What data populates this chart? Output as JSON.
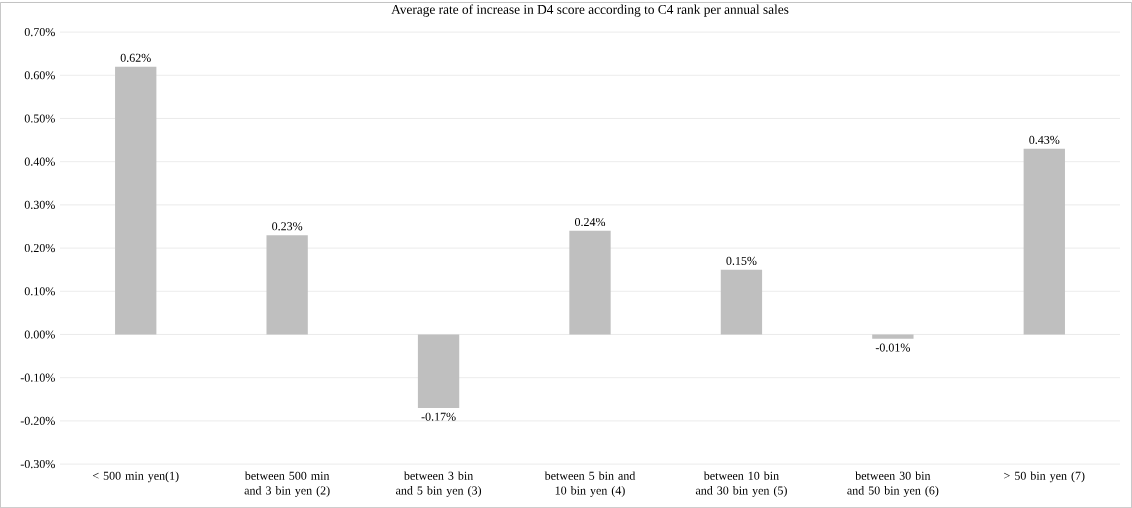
{
  "chart_data": {
    "type": "bar",
    "title": "Average rate of increase in D4 score according to C4 rank per annual sales",
    "categories": [
      "< 500 min yen(1)",
      "between 500 min and 3 bin yen (2)",
      "between 3 bin and 5 bin yen (3)",
      "between 5 bin and 10 bin yen (4)",
      "between 10 bin and 30 bin yen (5)",
      "between 30 bin and 50 bin yen (6)",
      "> 50 bin yen (7)"
    ],
    "values": [
      0.62,
      0.23,
      -0.17,
      0.24,
      0.15,
      -0.01,
      0.43
    ],
    "value_labels": [
      "0.62%",
      "0.23%",
      "-0.17%",
      "0.24%",
      "0.15%",
      "-0.01%",
      "0.43%"
    ],
    "color": "#bfbfbf",
    "ylim": [
      -0.3,
      0.7
    ],
    "yticks": [
      {
        "value": -0.3,
        "label": "-0.30%"
      },
      {
        "value": -0.2,
        "label": "-0.20%"
      },
      {
        "value": -0.1,
        "label": "-0.10%"
      },
      {
        "value": 0,
        "label": "0.00%"
      },
      {
        "value": 0.1,
        "label": "0.10%"
      },
      {
        "value": 0.2,
        "label": "0.20%"
      },
      {
        "value": 0.3,
        "label": "0.30%"
      },
      {
        "value": 0.4,
        "label": "0.40%"
      },
      {
        "value": 0.5,
        "label": "0.50%"
      },
      {
        "value": 0.6,
        "label": "0.60%"
      },
      {
        "value": 0.7,
        "label": "0.70%"
      }
    ],
    "grid": "y"
  }
}
